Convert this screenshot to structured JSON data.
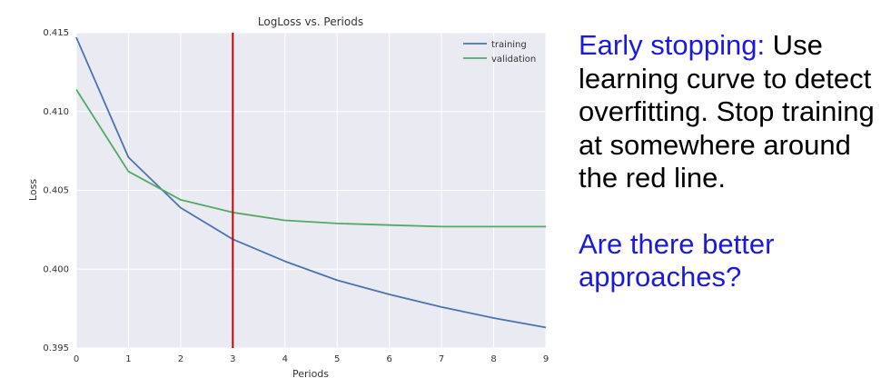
{
  "chart_data": {
    "type": "line",
    "title": "LogLoss vs. Periods",
    "xlabel": "Periods",
    "ylabel": "Loss",
    "x": [
      0,
      1,
      2,
      3,
      4,
      5,
      6,
      7,
      8,
      9
    ],
    "xlim": [
      0,
      9
    ],
    "ylim": [
      0.395,
      0.415
    ],
    "xticks": [
      "0",
      "1",
      "2",
      "3",
      "4",
      "5",
      "6",
      "7",
      "8",
      "9"
    ],
    "yticks": [
      "0.395",
      "0.400",
      "0.405",
      "0.410",
      "0.415"
    ],
    "grid": true,
    "legend_position": "top-right",
    "series": [
      {
        "name": "training",
        "color": "#4c72b0",
        "values": [
          0.4147,
          0.4071,
          0.4039,
          0.4019,
          0.4005,
          0.3993,
          0.3984,
          0.3976,
          0.3969,
          0.3963
        ]
      },
      {
        "name": "validation",
        "color": "#55a868",
        "values": [
          0.4114,
          0.4062,
          0.4044,
          0.4036,
          0.4031,
          0.4029,
          0.4028,
          0.4027,
          0.4027,
          0.4027
        ]
      }
    ],
    "vline": {
      "x": 3,
      "color": "#cc0000"
    }
  },
  "side": {
    "early_stopping_label": "Early stopping:",
    "early_stopping_text": " Use learning curve to detect overfitting. Stop training at somewhere around the red line.",
    "question": "Are there better approaches?"
  }
}
